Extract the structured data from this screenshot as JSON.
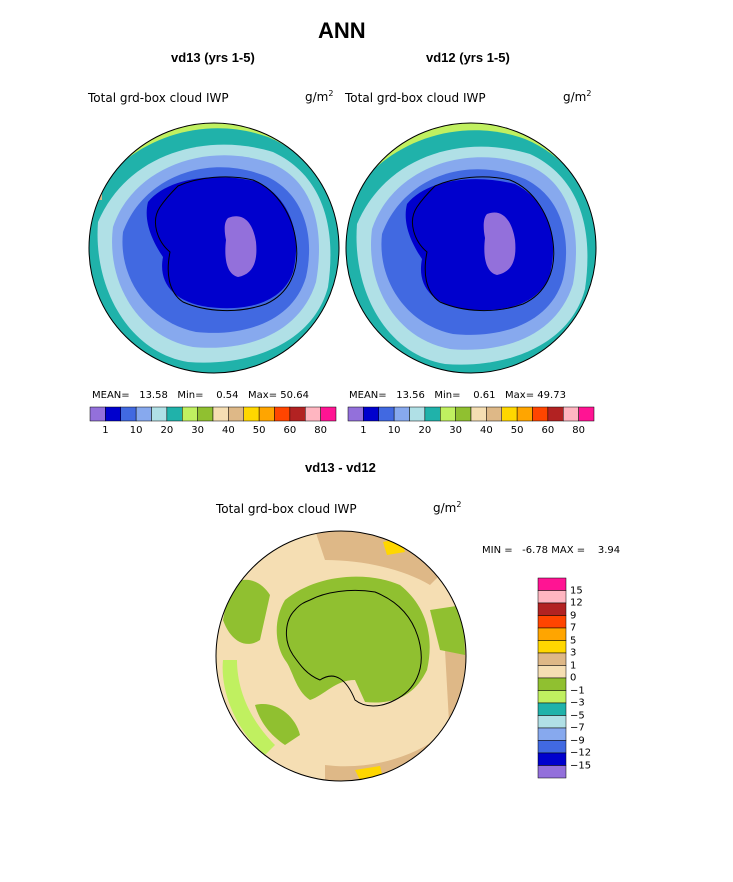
{
  "chart_data": [
    {
      "type": "heatmap",
      "title": "vd13 (yrs 1-5)",
      "variable": "Total grd-box cloud IWP",
      "units_base": "g/m",
      "units_exp": "2",
      "mean_label": "MEAN=",
      "mean": "13.58",
      "min_label": "Min=",
      "min": "0.54",
      "max_label": "Max=",
      "max": "50.64",
      "levels": [
        "1",
        "10",
        "20",
        "30",
        "40",
        "50",
        "60",
        "80"
      ],
      "colors": [
        "#9370db",
        "#0000cd",
        "#4169e1",
        "#87a9ee",
        "#b0e0e6",
        "#20b2aa",
        "#c0f060",
        "#90c030",
        "#f5deb3",
        "#deb887",
        "#ffd700",
        "#ffa500",
        "#ff4500",
        "#b22222",
        "#ffb6c1",
        "#ff1493"
      ]
    },
    {
      "type": "heatmap",
      "title": "vd12 (yrs 1-5)",
      "variable": "Total grd-box cloud IWP",
      "units_base": "g/m",
      "units_exp": "2",
      "mean_label": "MEAN=",
      "mean": "13.56",
      "min_label": "Min=",
      "min": "0.61",
      "max_label": "Max=",
      "max": "49.73",
      "levels": [
        "1",
        "10",
        "20",
        "30",
        "40",
        "50",
        "60",
        "80"
      ],
      "colors": [
        "#9370db",
        "#0000cd",
        "#4169e1",
        "#87a9ee",
        "#b0e0e6",
        "#20b2aa",
        "#c0f060",
        "#90c030",
        "#f5deb3",
        "#deb887",
        "#ffd700",
        "#ffa500",
        "#ff4500",
        "#b22222",
        "#ffb6c1",
        "#ff1493"
      ]
    },
    {
      "type": "heatmap",
      "title": "vd13 - vd12",
      "variable": "Total grd-box cloud IWP",
      "units_base": "g/m",
      "units_exp": "2",
      "min_label": "MIN =",
      "min": "-6.78",
      "max_label": "MAX =",
      "max": "3.94",
      "levels": [
        "15",
        "12",
        "9",
        "7",
        "5",
        "3",
        "1",
        "0",
        "−1",
        "−3",
        "−5",
        "−7",
        "−9",
        "−12",
        "−15"
      ],
      "colors": [
        "#ff1493",
        "#ffb6c1",
        "#b22222",
        "#ff4500",
        "#ffa500",
        "#ffd700",
        "#deb887",
        "#f5deb3",
        "#90c030",
        "#c0f060",
        "#20b2aa",
        "#b0e0e6",
        "#87a9ee",
        "#4169e1",
        "#0000cd",
        "#9370db"
      ]
    }
  ],
  "page": {
    "title": "ANN"
  },
  "style": {
    "antarctica_high": "#9370db",
    "antarctica": "#0000cd",
    "ring1": "#4169e1",
    "ring2": "#87a9ee",
    "ring3": "#b0e0e6",
    "ring4": "#20b2aa",
    "ring5": "#c0f060",
    "ring6": "#90c030",
    "diff_bg": "#f5deb3",
    "diff_green": "#90c030",
    "diff_light": "#c0f060",
    "diff_tan": "#deb887",
    "diff_yellow": "#ffd700"
  }
}
